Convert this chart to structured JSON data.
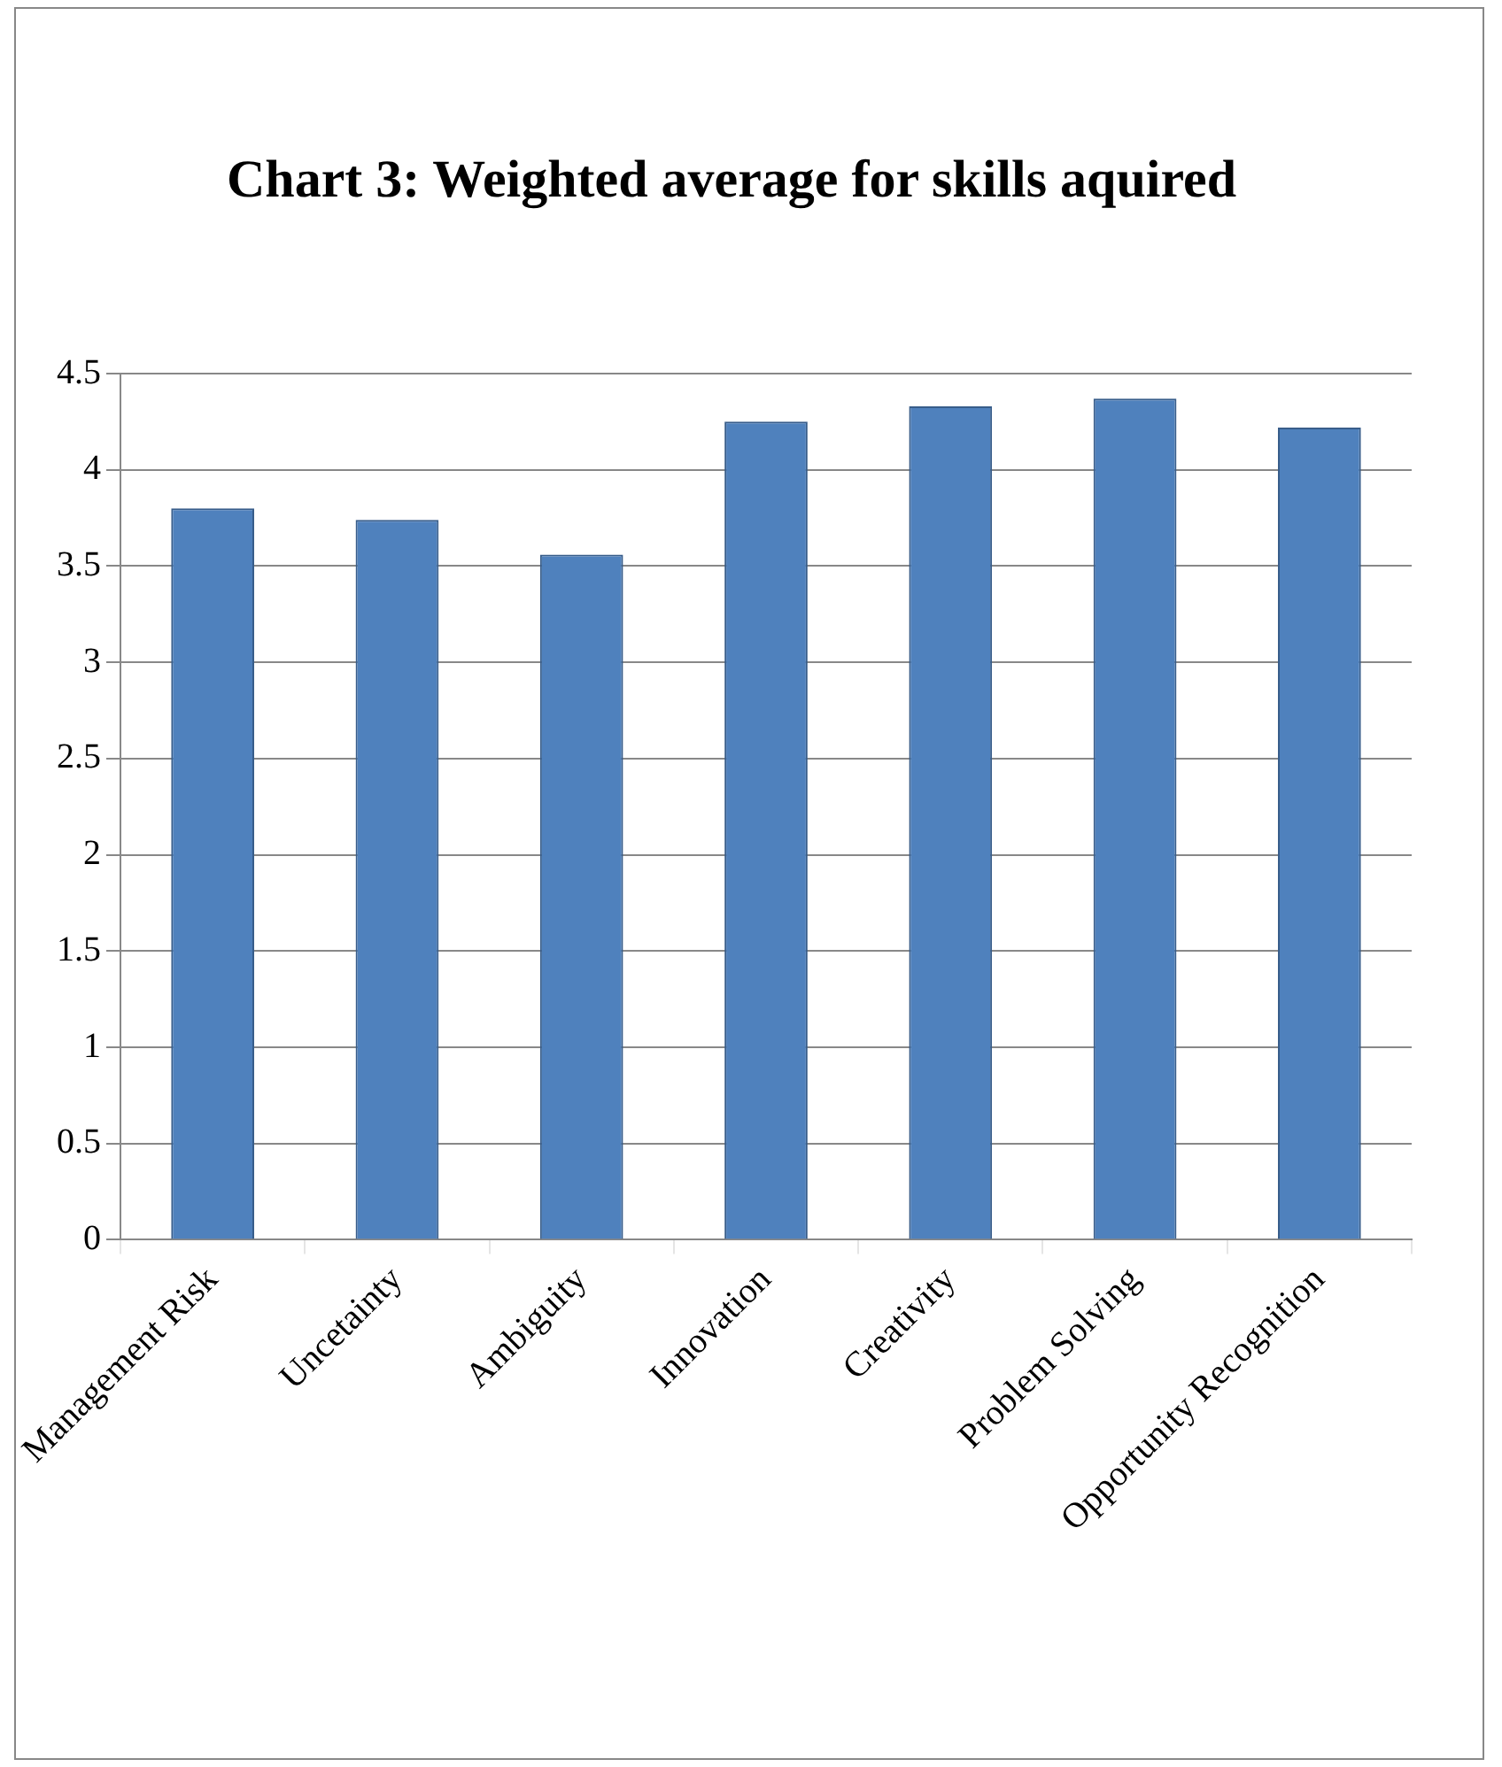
{
  "chart_data": {
    "type": "bar",
    "title": "Chart 3: Weighted average for skills aquired",
    "categories": [
      "Management Risk",
      "Uncetainty",
      "Ambiguity",
      "Innovation",
      "Creativity",
      "Problem Solving",
      "Opportunity Recognition"
    ],
    "values": [
      3.8,
      3.74,
      3.56,
      4.25,
      4.33,
      4.37,
      4.22
    ],
    "color": "#4f81bd",
    "ylim": [
      0,
      4.5
    ],
    "yticks": [
      0,
      0.5,
      1,
      1.5,
      2,
      2.5,
      3,
      3.5,
      4,
      4.5
    ],
    "grid": true
  }
}
